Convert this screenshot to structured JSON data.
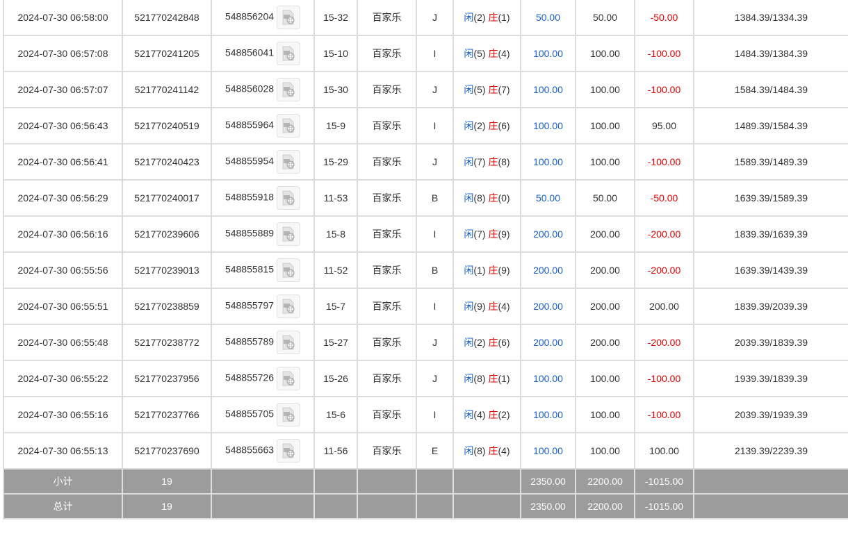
{
  "game_name": "百家乐",
  "player_label": "闲",
  "banker_label": "庄",
  "colors": {
    "player": "#1a5fd0",
    "banker": "#e60000",
    "negative": "#e60000",
    "footer_bg": "#9c9c9c"
  },
  "rows": [
    {
      "time": "2024-07-30 06:58:00",
      "order": "521770242848",
      "round": "548856204",
      "table": "15-32",
      "seat": "J",
      "player": "2",
      "banker": "1",
      "bet": "50.00",
      "valid": "50.00",
      "win": "-50.00",
      "balance": "1384.39/1334.39"
    },
    {
      "time": "2024-07-30 06:57:08",
      "order": "521770241205",
      "round": "548856041",
      "table": "15-10",
      "seat": "I",
      "player": "5",
      "banker": "4",
      "bet": "100.00",
      "valid": "100.00",
      "win": "-100.00",
      "balance": "1484.39/1384.39"
    },
    {
      "time": "2024-07-30 06:57:07",
      "order": "521770241142",
      "round": "548856028",
      "table": "15-30",
      "seat": "J",
      "player": "5",
      "banker": "7",
      "bet": "100.00",
      "valid": "100.00",
      "win": "-100.00",
      "balance": "1584.39/1484.39"
    },
    {
      "time": "2024-07-30 06:56:43",
      "order": "521770240519",
      "round": "548855964",
      "table": "15-9",
      "seat": "I",
      "player": "2",
      "banker": "6",
      "bet": "100.00",
      "valid": "100.00",
      "win": "95.00",
      "balance": "1489.39/1584.39"
    },
    {
      "time": "2024-07-30 06:56:41",
      "order": "521770240423",
      "round": "548855954",
      "table": "15-29",
      "seat": "J",
      "player": "7",
      "banker": "8",
      "bet": "100.00",
      "valid": "100.00",
      "win": "-100.00",
      "balance": "1589.39/1489.39"
    },
    {
      "time": "2024-07-30 06:56:29",
      "order": "521770240017",
      "round": "548855918",
      "table": "11-53",
      "seat": "B",
      "player": "8",
      "banker": "0",
      "bet": "50.00",
      "valid": "50.00",
      "win": "-50.00",
      "balance": "1639.39/1589.39"
    },
    {
      "time": "2024-07-30 06:56:16",
      "order": "521770239606",
      "round": "548855889",
      "table": "15-8",
      "seat": "I",
      "player": "7",
      "banker": "9",
      "bet": "200.00",
      "valid": "200.00",
      "win": "-200.00",
      "balance": "1839.39/1639.39"
    },
    {
      "time": "2024-07-30 06:55:56",
      "order": "521770239013",
      "round": "548855815",
      "table": "11-52",
      "seat": "B",
      "player": "1",
      "banker": "9",
      "bet": "200.00",
      "valid": "200.00",
      "win": "-200.00",
      "balance": "1639.39/1439.39"
    },
    {
      "time": "2024-07-30 06:55:51",
      "order": "521770238859",
      "round": "548855797",
      "table": "15-7",
      "seat": "I",
      "player": "9",
      "banker": "4",
      "bet": "200.00",
      "valid": "200.00",
      "win": "200.00",
      "balance": "1839.39/2039.39"
    },
    {
      "time": "2024-07-30 06:55:48",
      "order": "521770238772",
      "round": "548855789",
      "table": "15-27",
      "seat": "J",
      "player": "2",
      "banker": "6",
      "bet": "200.00",
      "valid": "200.00",
      "win": "-200.00",
      "balance": "2039.39/1839.39"
    },
    {
      "time": "2024-07-30 06:55:22",
      "order": "521770237956",
      "round": "548855726",
      "table": "15-26",
      "seat": "J",
      "player": "8",
      "banker": "1",
      "bet": "100.00",
      "valid": "100.00",
      "win": "-100.00",
      "balance": "1939.39/1839.39"
    },
    {
      "time": "2024-07-30 06:55:16",
      "order": "521770237766",
      "round": "548855705",
      "table": "15-6",
      "seat": "I",
      "player": "4",
      "banker": "2",
      "bet": "100.00",
      "valid": "100.00",
      "win": "-100.00",
      "balance": "2039.39/1939.39"
    },
    {
      "time": "2024-07-30 06:55:13",
      "order": "521770237690",
      "round": "548855663",
      "table": "11-56",
      "seat": "E",
      "player": "8",
      "banker": "4",
      "bet": "100.00",
      "valid": "100.00",
      "win": "100.00",
      "balance": "2139.39/2239.39"
    }
  ],
  "footer": [
    {
      "label": "小计",
      "count": "19",
      "bet": "2350.00",
      "valid": "2200.00",
      "win": "-1015.00"
    },
    {
      "label": "总计",
      "count": "19",
      "bet": "2350.00",
      "valid": "2200.00",
      "win": "-1015.00"
    }
  ],
  "video_icon": "video-replay-icon"
}
